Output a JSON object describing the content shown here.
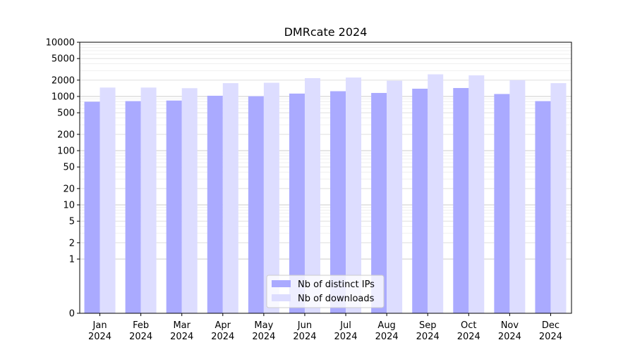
{
  "chart_data": {
    "type": "bar",
    "title": "DMRcate 2024",
    "xlabel": "",
    "ylabel": "",
    "yscale": "symlog",
    "ylim": [
      0,
      10000
    ],
    "yticks": [
      0,
      1,
      2,
      5,
      10,
      20,
      50,
      100,
      200,
      500,
      1000,
      2000,
      5000,
      10000
    ],
    "grid": true,
    "legend_position": "bottom-center",
    "categories": [
      {
        "month": "Jan",
        "year": "2024"
      },
      {
        "month": "Feb",
        "year": "2024"
      },
      {
        "month": "Mar",
        "year": "2024"
      },
      {
        "month": "Apr",
        "year": "2024"
      },
      {
        "month": "May",
        "year": "2024"
      },
      {
        "month": "Jun",
        "year": "2024"
      },
      {
        "month": "Jul",
        "year": "2024"
      },
      {
        "month": "Aug",
        "year": "2024"
      },
      {
        "month": "Sep",
        "year": "2024"
      },
      {
        "month": "Oct",
        "year": "2024"
      },
      {
        "month": "Nov",
        "year": "2024"
      },
      {
        "month": "Dec",
        "year": "2024"
      }
    ],
    "series": [
      {
        "name": "Nb of distinct IPs",
        "color": "#aaaaff",
        "values": [
          800,
          820,
          840,
          1030,
          1010,
          1130,
          1250,
          1160,
          1390,
          1430,
          1110,
          820
        ]
      },
      {
        "name": "Nb of downloads",
        "color": "#ddddff",
        "values": [
          1460,
          1460,
          1420,
          1760,
          1790,
          2180,
          2230,
          1950,
          2560,
          2450,
          2000,
          1760
        ]
      }
    ]
  }
}
